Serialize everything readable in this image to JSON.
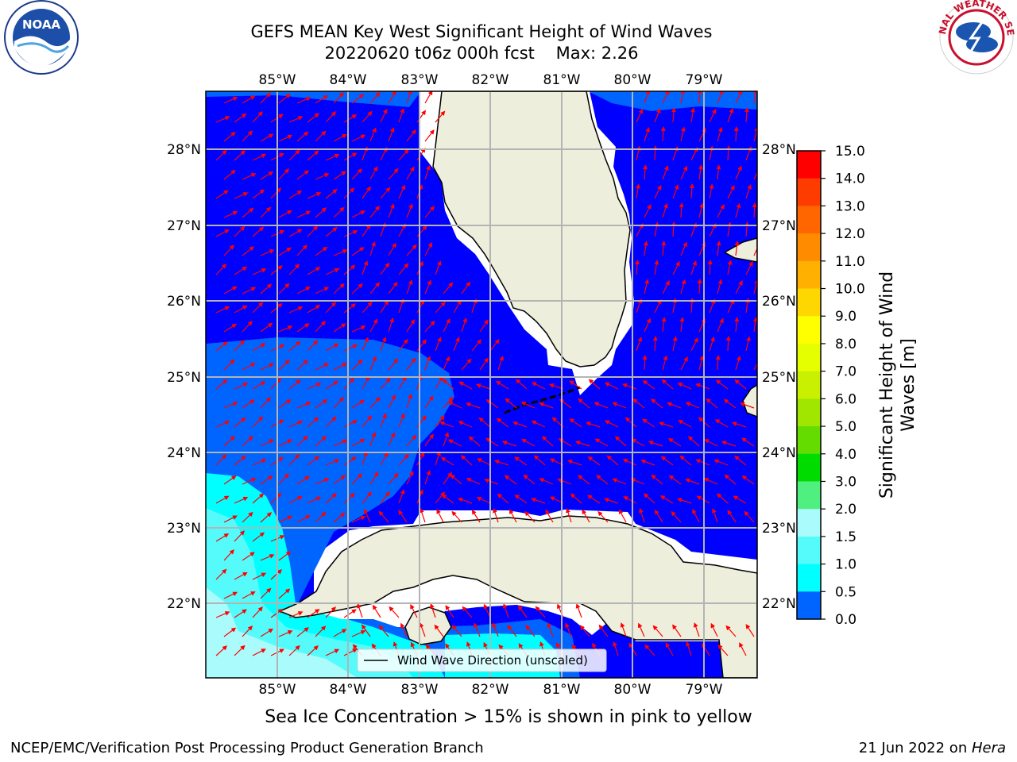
{
  "title": {
    "line1": "GEFS MEAN Key West Significant Height of Wind Waves",
    "line2": "20220620 t06z 000h fcst    Max: 2.26"
  },
  "logos": {
    "left": {
      "icon": "noaa-logo",
      "text": "NOAA",
      "ring_text": "NATIONAL OCEANIC AND ATMOSPHERIC ADMINISTRATION · U.S. DEPARTMENT OF COMMERCE"
    },
    "right": {
      "icon": "nws-logo",
      "ring_text": "NATIONAL WEATHER SERVICE"
    }
  },
  "map": {
    "lon_labels": [
      "85°W",
      "84°W",
      "83°W",
      "82°W",
      "81°W",
      "80°W",
      "79°W"
    ],
    "lat_labels": [
      "28°N",
      "27°N",
      "26°N",
      "25°N",
      "24°N",
      "23°N",
      "22°N"
    ],
    "legend": "Wind Wave Direction (unscaled)",
    "colors": {
      "land": "#eeeedc",
      "band_0_0_5": "#0000ff",
      "band_0_5_1_0": "#0064ff",
      "band_1_0_1_5": "#00ffff",
      "band_1_5_2_0": "#55fbfb",
      "band_2_0_3_0": "#aafcfc",
      "arrow": "#ff0000",
      "grid": "#b4b4b4"
    }
  },
  "colorbar": {
    "title_line1": "Significant Height of Wind",
    "title_line2": "Waves [m]",
    "ticks": [
      "15.0",
      "14.0",
      "13.0",
      "12.0",
      "11.0",
      "10.0",
      "9.0",
      "8.0",
      "7.0",
      "6.0",
      "5.0",
      "4.0",
      "3.0",
      "2.0",
      "1.5",
      "1.0",
      "0.5",
      "0.0"
    ],
    "colors": [
      "#ff0000",
      "#ff3c00",
      "#ff6600",
      "#ff8c00",
      "#ffb000",
      "#ffd700",
      "#ffff00",
      "#e6ff00",
      "#c8f000",
      "#a0e600",
      "#64dc00",
      "#00dc00",
      "#50f080",
      "#aafcfc",
      "#55fbfb",
      "#00ffff",
      "#0064ff",
      "#0000ff"
    ]
  },
  "subtitle": "Sea Ice Concentration > 15% is shown in pink to yellow",
  "footer": {
    "left": "NCEP/EMC/Verification Post Processing Product Generation Branch",
    "date": "21 Jun 2022 on ",
    "host": "Hera"
  }
}
